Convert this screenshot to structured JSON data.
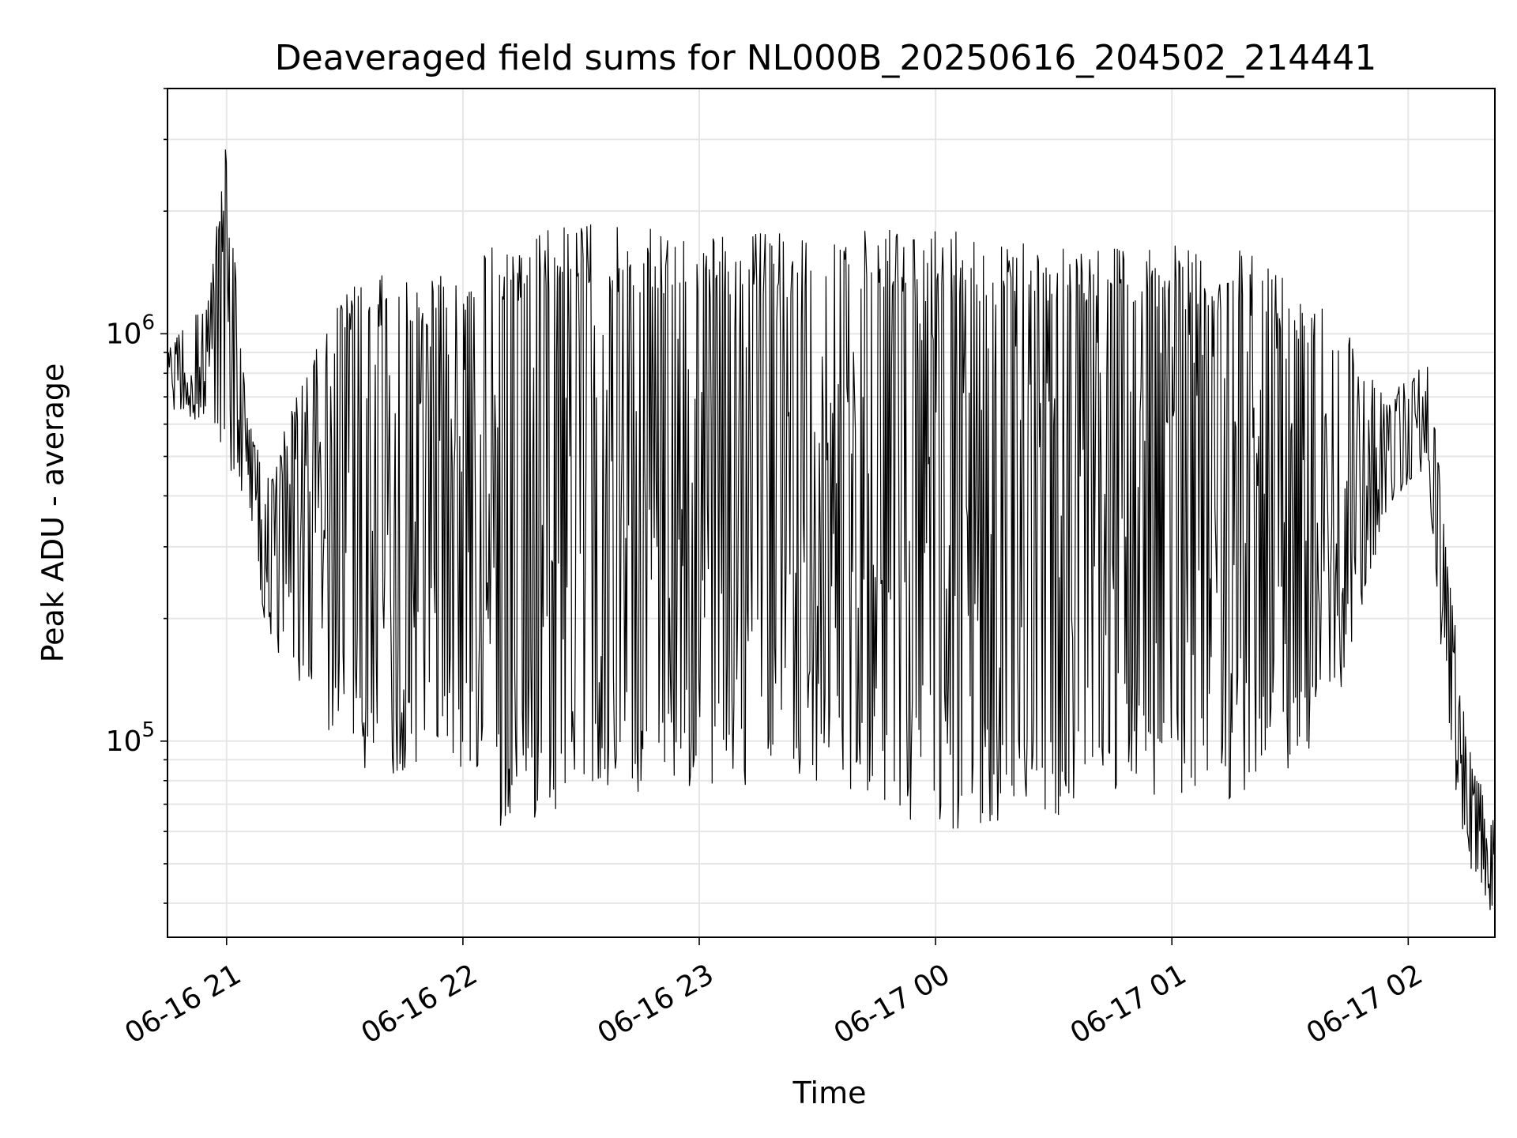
{
  "chart_data": {
    "type": "line",
    "title": "Deaveraged field sums for NL000B_20250616_204502_214441",
    "xlabel": "Time",
    "ylabel": "Peak ADU - average",
    "yscale": "log",
    "ylim": [
      33000,
      4000000
    ],
    "xlim": [
      "2025-06-16 20:45",
      "2025-06-17 02:22"
    ],
    "grid": true,
    "line_color": "#000000",
    "xticks": [
      {
        "value": "2025-06-16 21:00",
        "label": "06-16 21"
      },
      {
        "value": "2025-06-16 22:00",
        "label": "06-16 22"
      },
      {
        "value": "2025-06-16 23:00",
        "label": "06-16 23"
      },
      {
        "value": "2025-06-17 00:00",
        "label": "06-17 00"
      },
      {
        "value": "2025-06-17 01:00",
        "label": "06-17 01"
      },
      {
        "value": "2025-06-17 02:00",
        "label": "06-17 02"
      }
    ],
    "yticks": [
      {
        "value": 100000,
        "base": "10",
        "exp": "5"
      },
      {
        "value": 1000000,
        "base": "10",
        "exp": "6"
      }
    ],
    "series_envelope": [
      {
        "t": "2025-06-16 20:45",
        "low": 650000,
        "high": 950000
      },
      {
        "t": "2025-06-16 20:55",
        "low": 600000,
        "high": 1200000
      },
      {
        "t": "2025-06-16 21:00",
        "low": 450000,
        "high": 3000000
      },
      {
        "t": "2025-06-16 21:05",
        "low": 400000,
        "high": 650000
      },
      {
        "t": "2025-06-16 21:10",
        "low": 180000,
        "high": 450000
      },
      {
        "t": "2025-06-16 21:20",
        "low": 130000,
        "high": 800000
      },
      {
        "t": "2025-06-16 21:30",
        "low": 90000,
        "high": 1300000
      },
      {
        "t": "2025-06-16 21:40",
        "low": 80000,
        "high": 1400000
      },
      {
        "t": "2025-06-16 21:50",
        "low": 90000,
        "high": 1400000
      },
      {
        "t": "2025-06-16 22:00",
        "low": 80000,
        "high": 1500000
      },
      {
        "t": "2025-06-16 22:10",
        "low": 60000,
        "high": 1700000
      },
      {
        "t": "2025-06-16 22:30",
        "low": 70000,
        "high": 1900000
      },
      {
        "t": "2025-06-16 23:00",
        "low": 75000,
        "high": 1750000
      },
      {
        "t": "2025-06-16 23:30",
        "low": 80000,
        "high": 1800000
      },
      {
        "t": "2025-06-17 00:00",
        "low": 60000,
        "high": 1800000
      },
      {
        "t": "2025-06-17 00:30",
        "low": 65000,
        "high": 1700000
      },
      {
        "t": "2025-06-17 01:00",
        "low": 75000,
        "high": 1650000
      },
      {
        "t": "2025-06-17 01:20",
        "low": 70000,
        "high": 1600000
      },
      {
        "t": "2025-06-17 01:40",
        "low": 100000,
        "high": 1200000
      },
      {
        "t": "2025-06-17 01:55",
        "low": 380000,
        "high": 700000
      },
      {
        "t": "2025-06-17 02:05",
        "low": 450000,
        "high": 900000
      },
      {
        "t": "2025-06-17 02:10",
        "low": 100000,
        "high": 300000
      },
      {
        "t": "2025-06-17 02:15",
        "low": 50000,
        "high": 100000
      },
      {
        "t": "2025-06-17 02:22",
        "low": 36000,
        "high": 65000
      }
    ]
  }
}
